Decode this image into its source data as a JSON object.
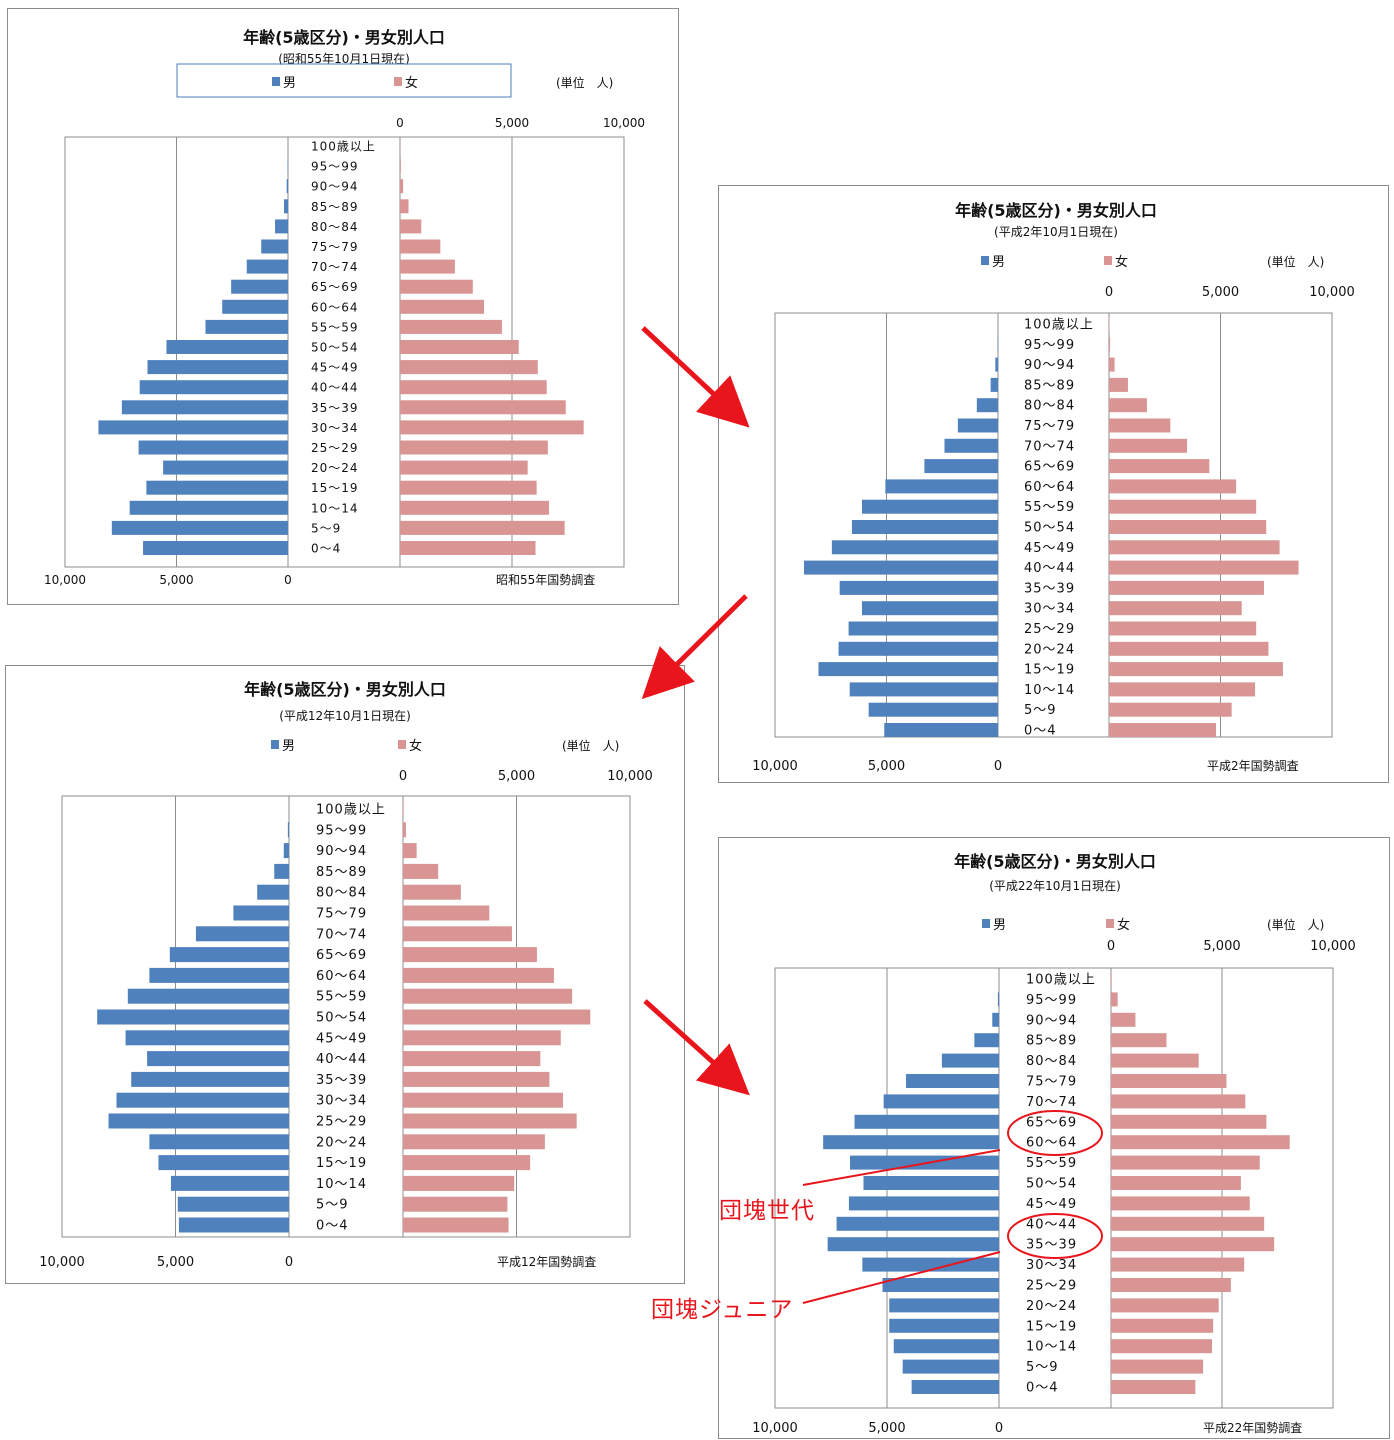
{
  "labels": {
    "male": "男",
    "female": "女",
    "unit": "(単位　人)"
  },
  "annotations": {
    "boomers": "団塊世代",
    "juniors": "団塊ジュニア"
  },
  "colors": {
    "male": "#4f81bd",
    "female": "#d99594",
    "annotation": "#e8161c"
  },
  "chart_data": [
    {
      "type": "bar",
      "title": "年齢(5歳区分)・男女別人口",
      "subtitle": "(昭和55年10月1日現在)",
      "source": "昭和55年国勢調査",
      "categories": [
        "100歳以上",
        "95～99",
        "90～94",
        "85～89",
        "80～84",
        "75～79",
        "70～74",
        "65～69",
        "60～64",
        "55～59",
        "50～54",
        "45～49",
        "40～44",
        "35～39",
        "30～34",
        "25～29",
        "20～24",
        "15～19",
        "10～14",
        "5～9",
        "0～4"
      ],
      "male_ticks": [
        "10,000",
        "5,000",
        "0"
      ],
      "female_ticks": [
        "0",
        "5,000",
        "10,000"
      ],
      "xlim": [
        0,
        10000
      ],
      "series": [
        {
          "name": "男",
          "values": [
            0,
            20,
            60,
            180,
            580,
            1200,
            1850,
            2550,
            2950,
            3700,
            5450,
            6300,
            6650,
            7450,
            8500,
            6700,
            5600,
            6350,
            7100,
            7900,
            6500
          ]
        },
        {
          "name": "女",
          "values": [
            10,
            40,
            140,
            380,
            950,
            1800,
            2450,
            3250,
            3750,
            4550,
            5300,
            6150,
            6550,
            7400,
            8200,
            6600,
            5700,
            6100,
            6650,
            7350,
            6050
          ]
        }
      ]
    },
    {
      "type": "bar",
      "title": "年齢(5歳区分)・男女別人口",
      "subtitle": "(平成2年10月1日現在)",
      "source": "平成2年国勢調査",
      "categories": [
        "100歳以上",
        "95～99",
        "90～94",
        "85～89",
        "80～84",
        "75～79",
        "70～74",
        "65～69",
        "60～64",
        "55～59",
        "50～54",
        "45～49",
        "40～44",
        "35～39",
        "30～34",
        "25～29",
        "20～24",
        "15～19",
        "10～14",
        "5～9",
        "0～4"
      ],
      "male_ticks": [
        "10,000",
        "5,000",
        "0"
      ],
      "female_ticks": [
        "0",
        "5,000",
        "10,000"
      ],
      "xlim": [
        0,
        10000
      ],
      "series": [
        {
          "name": "男",
          "values": [
            0,
            20,
            120,
            330,
            950,
            1800,
            2400,
            3300,
            5050,
            6100,
            6550,
            7450,
            8700,
            7100,
            6100,
            6700,
            7150,
            8050,
            6650,
            5800,
            5100
          ]
        },
        {
          "name": "女",
          "values": [
            20,
            50,
            250,
            850,
            1700,
            2750,
            3500,
            4500,
            5700,
            6600,
            7050,
            7650,
            8500,
            6950,
            5950,
            6600,
            7150,
            7800,
            6550,
            5500,
            4800
          ]
        }
      ]
    },
    {
      "type": "bar",
      "title": "年齢(5歳区分)・男女別人口",
      "subtitle": "(平成12年10月1日現在)",
      "source": "平成12年国勢調査",
      "categories": [
        "100歳以上",
        "95～99",
        "90～94",
        "85～89",
        "80～84",
        "75～79",
        "70～74",
        "65～69",
        "60～64",
        "55～59",
        "50～54",
        "45～49",
        "40～44",
        "35～39",
        "30～34",
        "25～29",
        "20～24",
        "15～19",
        "10～14",
        "5～9",
        "0～4"
      ],
      "male_ticks": [
        "10,000",
        "5,000",
        "0"
      ],
      "female_ticks": [
        "0",
        "5,000",
        "10,000"
      ],
      "xlim": [
        0,
        10000
      ],
      "series": [
        {
          "name": "男",
          "values": [
            0,
            50,
            230,
            650,
            1400,
            2450,
            4100,
            5250,
            6150,
            7100,
            8450,
            7200,
            6250,
            6950,
            7600,
            7950,
            6150,
            5750,
            5200,
            4900,
            4850
          ]
        },
        {
          "name": "女",
          "values": [
            30,
            130,
            600,
            1550,
            2550,
            3800,
            4800,
            5900,
            6650,
            7450,
            8250,
            6950,
            6050,
            6450,
            7050,
            7650,
            6250,
            5600,
            4900,
            4600,
            4650
          ]
        }
      ]
    },
    {
      "type": "bar",
      "title": "年齢(5歳区分)・男女別人口",
      "subtitle": "(平成22年10月1日現在)",
      "source": "平成22年国勢調査",
      "categories": [
        "100歳以上",
        "95～99",
        "90～94",
        "85～89",
        "80～84",
        "75～79",
        "70～74",
        "65～69",
        "60～64",
        "55～59",
        "50～54",
        "45～49",
        "40～44",
        "35～39",
        "30～34",
        "25～29",
        "20～24",
        "15～19",
        "10～14",
        "5～9",
        "0～4"
      ],
      "male_ticks": [
        "10,000",
        "5,000",
        "0"
      ],
      "female_ticks": [
        "0",
        "5,000",
        "10,000"
      ],
      "xlim": [
        0,
        10000
      ],
      "series": [
        {
          "name": "男",
          "values": [
            0,
            50,
            300,
            1100,
            2550,
            4150,
            5150,
            6450,
            7850,
            6650,
            6050,
            6700,
            7250,
            7650,
            6100,
            5200,
            4900,
            4900,
            4700,
            4300,
            3900
          ]
        },
        {
          "name": "女",
          "values": [
            30,
            300,
            1100,
            2500,
            3950,
            5200,
            6050,
            7000,
            8050,
            6700,
            5850,
            6250,
            6900,
            7350,
            6000,
            5400,
            4850,
            4600,
            4550,
            4150,
            3800
          ]
        }
      ]
    }
  ]
}
